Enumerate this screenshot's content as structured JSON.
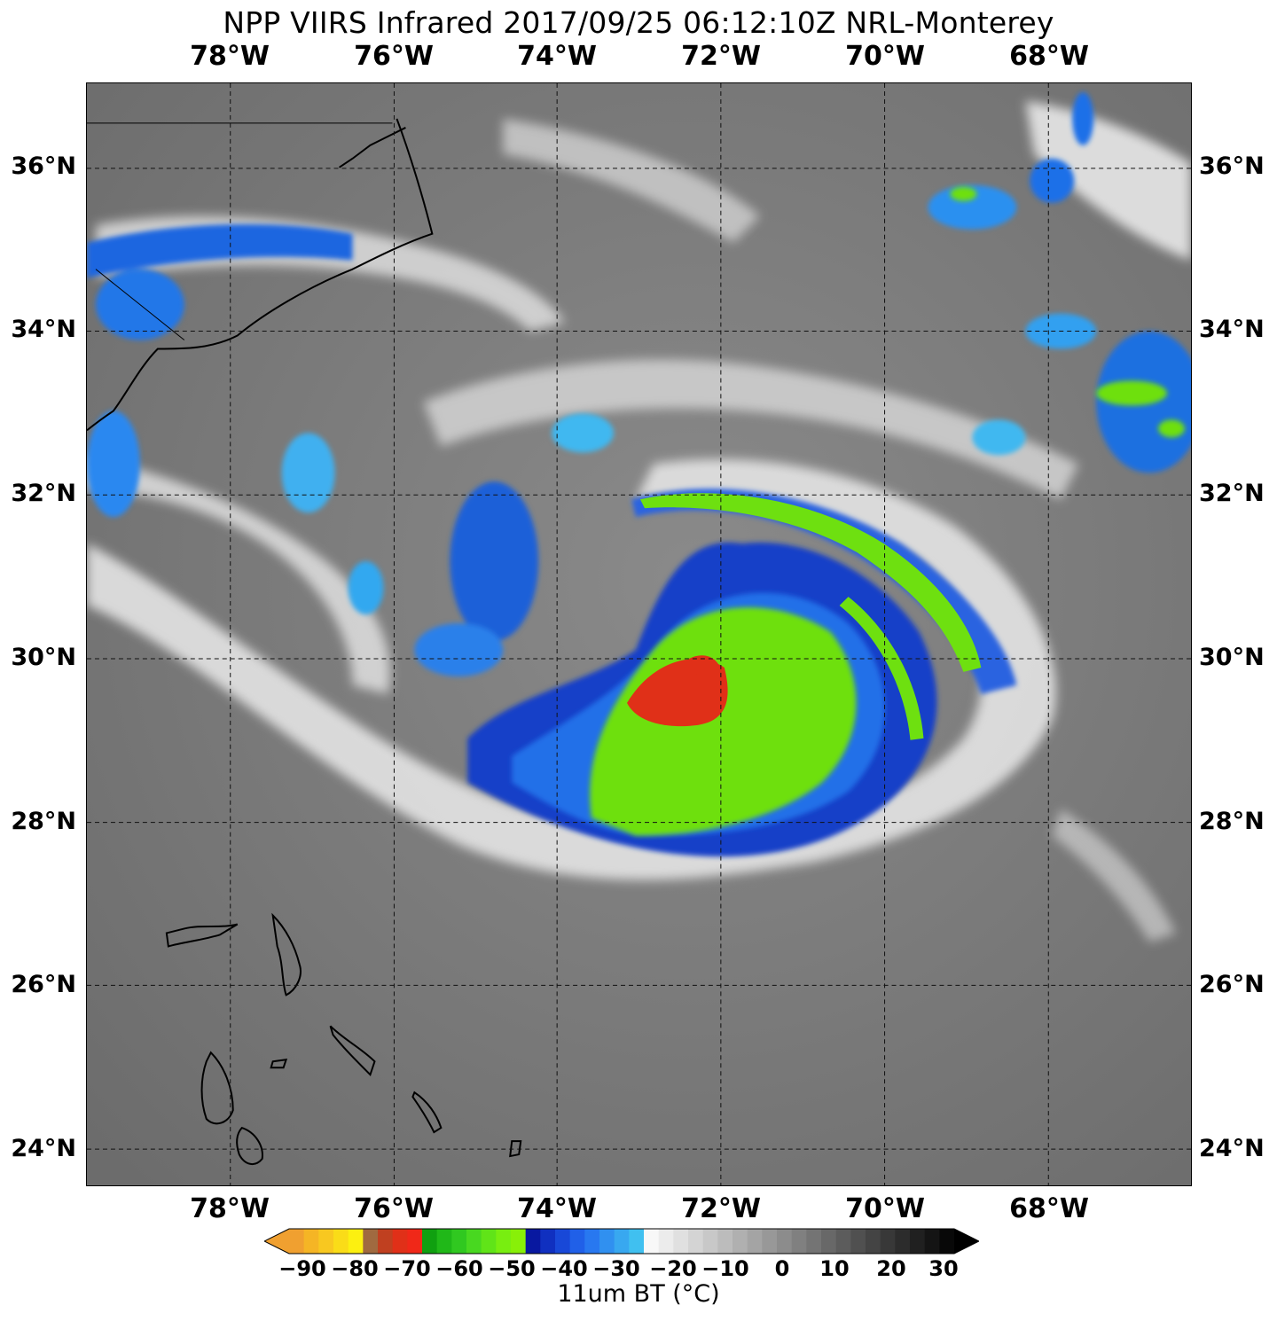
{
  "title": "NPP VIIRS Infrared 2017/09/25 06:12:10Z NRL-Monterey",
  "lon_ticks": [
    "78°W",
    "76°W",
    "74°W",
    "72°W",
    "70°W",
    "68°W"
  ],
  "lat_ticks": [
    "36°N",
    "34°N",
    "32°N",
    "30°N",
    "28°N",
    "26°N",
    "24°N"
  ],
  "colorbar": {
    "ticks": [
      "−90",
      "−80",
      "−70",
      "−60",
      "−50",
      "−40",
      "−30",
      "−20",
      "−10",
      "0",
      "10",
      "20",
      "30"
    ],
    "label": "11um BT (∘C)",
    "label_display": "11um BT (°C)"
  },
  "colors": {
    "background_gray": "#7a7a7a",
    "cloud_white": "#e8e8e8",
    "cold_blue": "#1060e0",
    "cyan": "#20b8f0",
    "green": "#6ee010",
    "red": "#e03018",
    "coastline": "#000000"
  }
}
